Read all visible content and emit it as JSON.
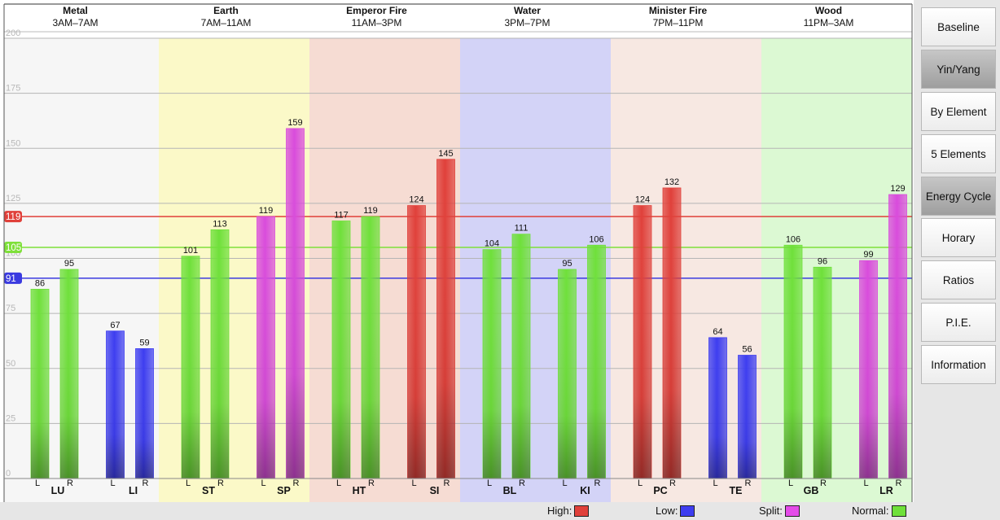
{
  "chart_data": {
    "type": "bar",
    "ylim": [
      0,
      200
    ],
    "yticks": [
      0,
      25,
      50,
      75,
      100,
      125,
      150,
      175,
      200
    ],
    "thresholds": [
      {
        "label": "119",
        "value": 119,
        "color": "#e0403a"
      },
      {
        "label": "105",
        "value": 105,
        "color": "#7fe03a"
      },
      {
        "label": "91",
        "value": 91,
        "color": "#3a3ae0"
      }
    ],
    "elements": [
      {
        "name": "Metal",
        "time": "3AM–7AM",
        "bg": "#f6f6f6"
      },
      {
        "name": "Earth",
        "time": "7AM–11AM",
        "bg": "#fbf9c8"
      },
      {
        "name": "Emperor Fire",
        "time": "11AM–3PM",
        "bg": "#f6dcd3"
      },
      {
        "name": "Water",
        "time": "3PM–7PM",
        "bg": "#d3d3f7"
      },
      {
        "name": "Minister Fire",
        "time": "7PM–11PM",
        "bg": "#f7e8e2"
      },
      {
        "name": "Wood",
        "time": "11PM–3AM",
        "bg": "#dcf9d3"
      }
    ],
    "meridians": [
      {
        "name": "LU",
        "element": 0,
        "L": 86,
        "R": 95,
        "Lstatus": "normal",
        "Rstatus": "normal"
      },
      {
        "name": "LI",
        "element": 0,
        "L": 67,
        "R": 59,
        "Lstatus": "low",
        "Rstatus": "low"
      },
      {
        "name": "ST",
        "element": 1,
        "L": 101,
        "R": 113,
        "Lstatus": "normal",
        "Rstatus": "normal"
      },
      {
        "name": "SP",
        "element": 1,
        "L": 119,
        "R": 159,
        "Lstatus": "split",
        "Rstatus": "split"
      },
      {
        "name": "HT",
        "element": 2,
        "L": 117,
        "R": 119,
        "Lstatus": "normal",
        "Rstatus": "normal"
      },
      {
        "name": "SI",
        "element": 2,
        "L": 124,
        "R": 145,
        "Lstatus": "high",
        "Rstatus": "high"
      },
      {
        "name": "BL",
        "element": 3,
        "L": 104,
        "R": 111,
        "Lstatus": "normal",
        "Rstatus": "normal"
      },
      {
        "name": "KI",
        "element": 3,
        "L": 95,
        "R": 106,
        "Lstatus": "normal",
        "Rstatus": "normal"
      },
      {
        "name": "PC",
        "element": 4,
        "L": 124,
        "R": 132,
        "Lstatus": "high",
        "Rstatus": "high"
      },
      {
        "name": "TE",
        "element": 4,
        "L": 64,
        "R": 56,
        "Lstatus": "low",
        "Rstatus": "low"
      },
      {
        "name": "GB",
        "element": 5,
        "L": 106,
        "R": 96,
        "Lstatus": "normal",
        "Rstatus": "normal"
      },
      {
        "name": "LR",
        "element": 5,
        "L": 99,
        "R": 129,
        "Lstatus": "split",
        "Rstatus": "split"
      }
    ],
    "side_labels": {
      "L": "L",
      "R": "R"
    },
    "status_colors": {
      "high": "#e0403a",
      "low": "#3d3df0",
      "split": "#d94bdc",
      "normal": "#6fe03a"
    }
  },
  "legend": {
    "high_label": "High:",
    "low_label": "Low:",
    "split_label": "Split:",
    "normal_label": "Normal:",
    "high_color": "#e0403a",
    "low_color": "#3d3df0",
    "split_color": "#e44be8",
    "normal_color": "#6fe03a"
  },
  "sidebar": {
    "buttons": [
      {
        "label": "Baseline",
        "active": false
      },
      {
        "label": "Yin/Yang",
        "active": true
      },
      {
        "label": "By Element",
        "active": false
      },
      {
        "label": "5 Elements",
        "active": false
      },
      {
        "label": "Energy Cycle",
        "active": true
      },
      {
        "label": "Horary",
        "active": false
      },
      {
        "label": "Ratios",
        "active": false
      },
      {
        "label": "P.I.E.",
        "active": false
      },
      {
        "label": "Information",
        "active": false
      }
    ]
  }
}
